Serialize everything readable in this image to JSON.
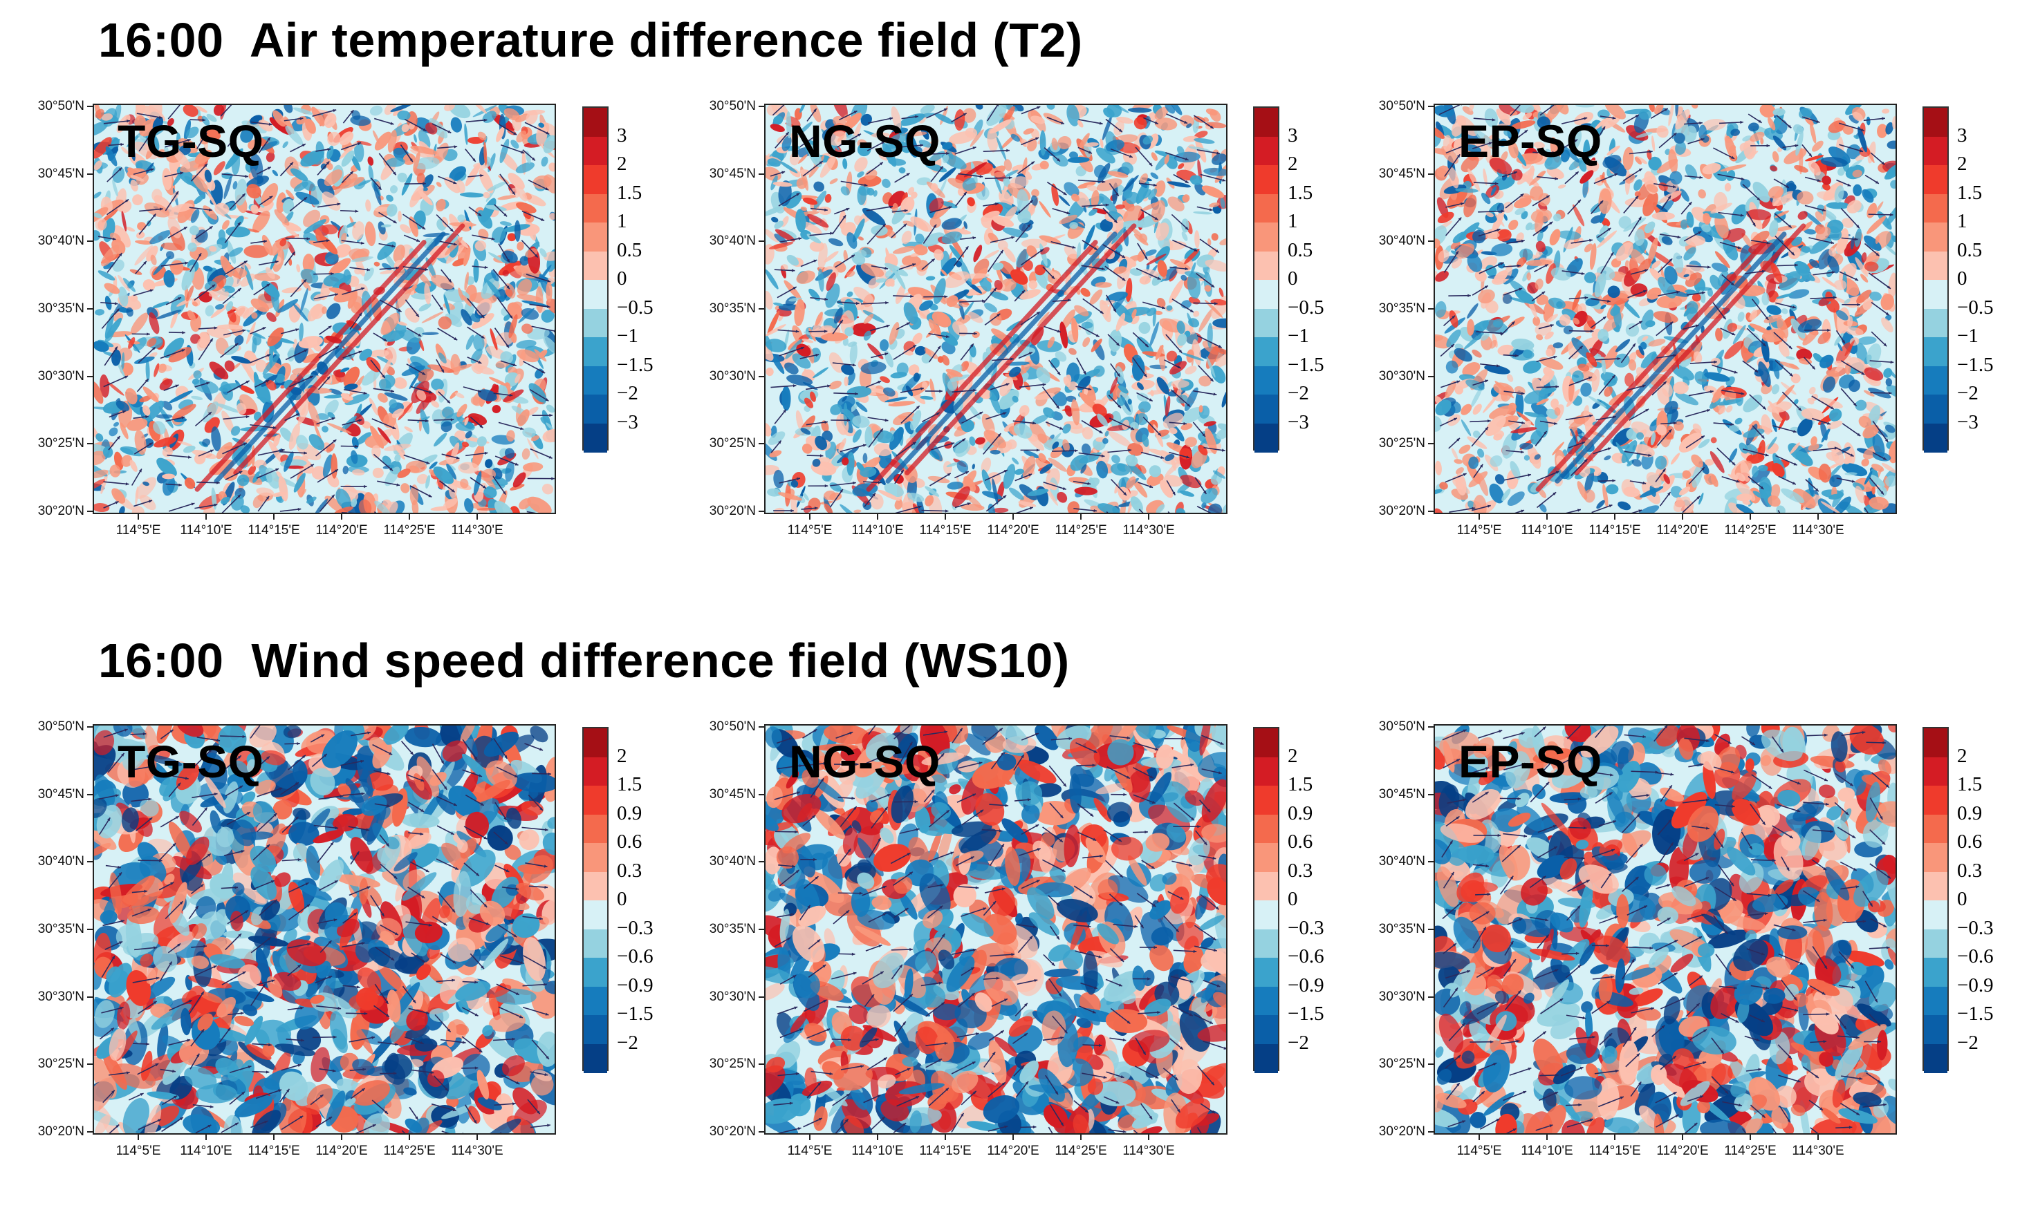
{
  "titles": {
    "t2": "16:00  Air temperature difference field (T2)",
    "ws": "16:00  Wind speed difference field (WS10)"
  },
  "panels": [
    {
      "id": "t2-tg",
      "row": "t2",
      "label": "TG-SQ"
    },
    {
      "id": "t2-ng",
      "row": "t2",
      "label": "NG-SQ"
    },
    {
      "id": "t2-ep",
      "row": "t2",
      "label": "EP-SQ"
    },
    {
      "id": "ws-tg",
      "row": "ws",
      "label": "TG-SQ"
    },
    {
      "id": "ws-ng",
      "row": "ws",
      "label": "NG-SQ"
    },
    {
      "id": "ws-ep",
      "row": "ws",
      "label": "EP-SQ"
    }
  ],
  "axes": {
    "lat_labels": [
      "30°50'N",
      "30°45'N",
      "30°40'N",
      "30°35'N",
      "30°30'N",
      "30°25'N",
      "30°20'N"
    ],
    "lon_labels": [
      "114°5'E",
      "114°10'E",
      "114°15'E",
      "114°20'E",
      "114°25'E",
      "114°30'E"
    ]
  },
  "colorbars": {
    "t2": {
      "labels": [
        "3",
        "2",
        "1.5",
        "1",
        "0.5",
        "0",
        "−0.5",
        "−1",
        "−1.5",
        "−2",
        "−3"
      ],
      "colors": [
        "#a50f15",
        "#d41c24",
        "#ef3b2c",
        "#f46a4d",
        "#f9967a",
        "#fcc1b0",
        "#d7f1f6",
        "#95d2e0",
        "#3ba3cc",
        "#167cbd",
        "#0a5fa8",
        "#053f86"
      ]
    },
    "ws": {
      "labels": [
        "2",
        "1.5",
        "0.9",
        "0.6",
        "0.3",
        "0",
        "−0.3",
        "−0.6",
        "−0.9",
        "−1.5",
        "−2"
      ],
      "colors": [
        "#a50f15",
        "#d41c24",
        "#ef3b2c",
        "#f46a4d",
        "#f9967a",
        "#fcc1b0",
        "#d7f1f6",
        "#95d2e0",
        "#3ba3cc",
        "#167cbd",
        "#0a5fa8",
        "#053f86"
      ]
    }
  },
  "style_colors": {
    "wind_vector": "#2a2a5e",
    "background_field": "#d7f1f6"
  }
}
